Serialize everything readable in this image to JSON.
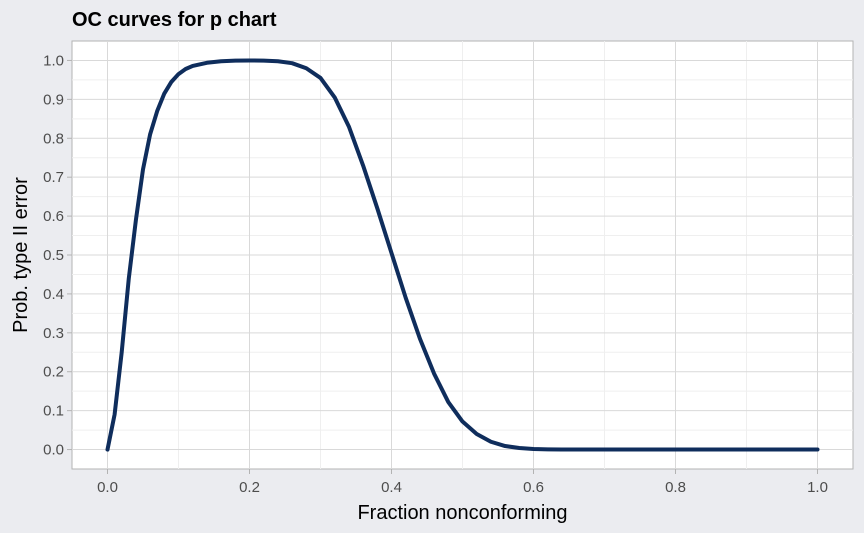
{
  "chart_data": {
    "type": "line",
    "title": "OC curves for p chart",
    "xlabel": "Fraction nonconforming",
    "ylabel": "Prob. type II error",
    "xlim": [
      -0.05,
      1.05
    ],
    "ylim": [
      -0.05,
      1.05
    ],
    "x_ticks": [
      0.0,
      0.2,
      0.4,
      0.6,
      0.8,
      1.0
    ],
    "x_tick_labels": [
      "0.0",
      "0.2",
      "0.4",
      "0.6",
      "0.8",
      "1.0"
    ],
    "y_ticks": [
      0.0,
      0.1,
      0.2,
      0.3,
      0.4,
      0.5,
      0.6,
      0.7,
      0.8,
      0.9,
      1.0
    ],
    "y_tick_labels": [
      "0.0",
      "0.1",
      "0.2",
      "0.3",
      "0.4",
      "0.5",
      "0.6",
      "0.7",
      "0.8",
      "0.9",
      "1.0"
    ],
    "grid": true,
    "legend": "none",
    "colors": {
      "line": "#0f2d5c",
      "panel_background": "#ffffff",
      "page_background": "#ebecf0",
      "grid_major": "#d9d9d9",
      "grid_minor": "#efefef",
      "panel_border": "#b3b3b3"
    },
    "series": [
      {
        "x": [
          0.0,
          0.01,
          0.02,
          0.03,
          0.04,
          0.05,
          0.06,
          0.07,
          0.08,
          0.09,
          0.1,
          0.11,
          0.12,
          0.14,
          0.16,
          0.18,
          0.2,
          0.22,
          0.24,
          0.26,
          0.28,
          0.3,
          0.32,
          0.34,
          0.36,
          0.38,
          0.4,
          0.42,
          0.44,
          0.46,
          0.48,
          0.5,
          0.52,
          0.54,
          0.56,
          0.58,
          0.6,
          0.62,
          0.64,
          0.66,
          0.68,
          0.7,
          0.75,
          0.8,
          0.85,
          0.9,
          0.95,
          1.0
        ],
        "values": [
          0.0,
          0.09,
          0.25,
          0.44,
          0.59,
          0.72,
          0.81,
          0.87,
          0.915,
          0.945,
          0.965,
          0.978,
          0.986,
          0.994,
          0.998,
          0.9995,
          1.0,
          0.9995,
          0.998,
          0.993,
          0.98,
          0.955,
          0.905,
          0.83,
          0.73,
          0.62,
          0.505,
          0.39,
          0.285,
          0.195,
          0.122,
          0.072,
          0.04,
          0.02,
          0.009,
          0.004,
          0.0015,
          0.0005,
          0.0002,
          0.0,
          0.0,
          0.0,
          0.0,
          0.0,
          0.0,
          0.0,
          0.0,
          0.0
        ]
      }
    ]
  }
}
